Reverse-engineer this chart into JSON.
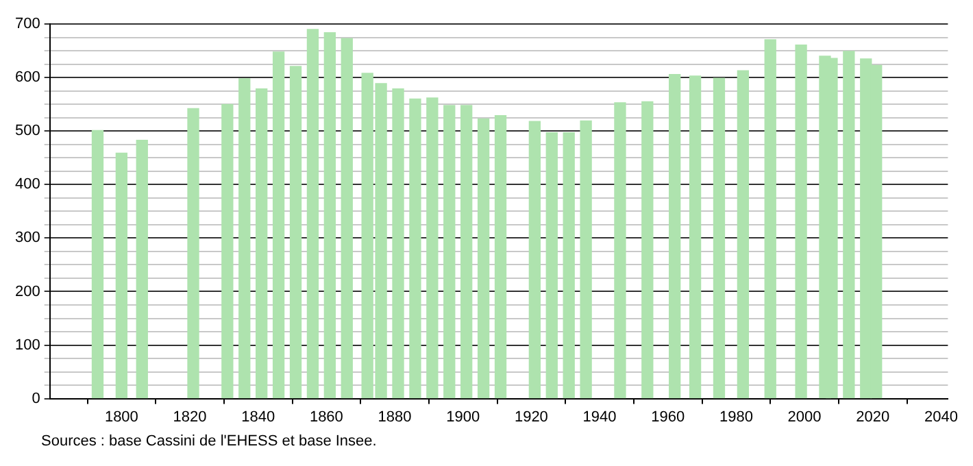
{
  "chart_data": {
    "type": "bar",
    "color": "#aee3ae",
    "x": [
      1793,
      1800,
      1806,
      1821,
      1831,
      1836,
      1841,
      1846,
      1851,
      1856,
      1861,
      1866,
      1872,
      1876,
      1881,
      1886,
      1891,
      1896,
      1901,
      1906,
      1911,
      1921,
      1926,
      1931,
      1936,
      1946,
      1954,
      1962,
      1968,
      1975,
      1982,
      1990,
      1999,
      2006,
      2008,
      2013,
      2018,
      2021
    ],
    "values": [
      501,
      459,
      483,
      542,
      550,
      598,
      579,
      648,
      621,
      690,
      684,
      673,
      608,
      589,
      579,
      560,
      562,
      548,
      548,
      523,
      529,
      518,
      497,
      497,
      519,
      553,
      555,
      606,
      603,
      599,
      613,
      671,
      661,
      640,
      636,
      649,
      635,
      623
    ],
    "xlim": [
      1779,
      2042
    ],
    "xticks": [
      1800,
      1820,
      1840,
      1860,
      1880,
      1900,
      1920,
      1940,
      1960,
      1980,
      2000,
      2020,
      2040
    ],
    "ylim": [
      0,
      700
    ],
    "yticks": [
      0,
      {
        "value": 25,
        "label": null
      },
      {
        "value": 50,
        "label": null
      },
      {
        "value": 75,
        "label": null
      },
      100,
      {
        "value": 125,
        "label": null
      },
      {
        "value": 150,
        "label": null
      },
      {
        "value": 175,
        "label": null
      },
      200,
      {
        "value": 225,
        "label": null
      },
      {
        "value": 250,
        "label": null
      },
      {
        "value": 275,
        "label": null
      },
      300,
      {
        "value": 325,
        "label": null
      },
      {
        "value": 350,
        "label": null
      },
      {
        "value": 375,
        "label": null
      },
      400,
      {
        "value": 425,
        "label": null
      },
      {
        "value": 450,
        "label": null
      },
      {
        "value": 475,
        "label": null
      },
      500,
      {
        "value": 525,
        "label": null
      },
      {
        "value": 550,
        "label": null
      },
      {
        "value": 575,
        "label": null
      },
      600,
      {
        "value": 625,
        "label": null
      },
      {
        "value": 650,
        "label": null
      },
      {
        "value": 675,
        "label": null
      },
      700
    ],
    "grid": "y",
    "annotations": [
      "Sources : base Cassini de l'EHESS et base Insee."
    ]
  }
}
